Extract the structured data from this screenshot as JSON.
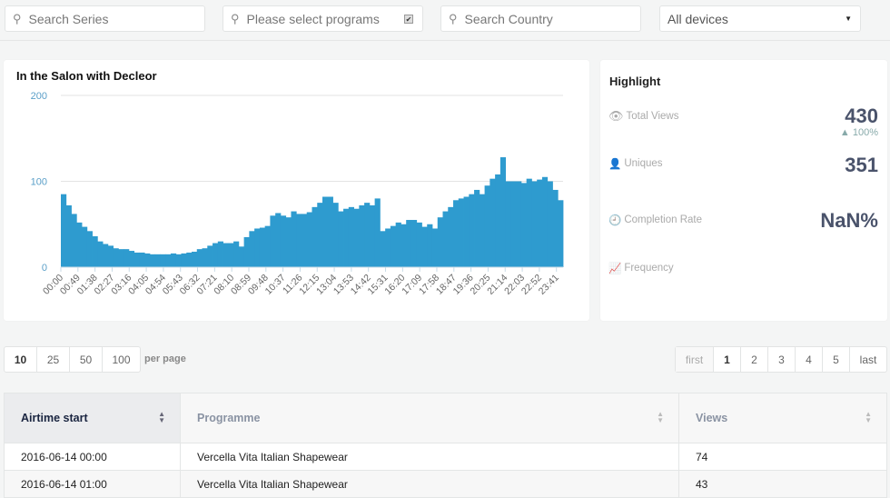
{
  "filters": {
    "series_placeholder": "Search Series",
    "programs_placeholder": "Please select programs",
    "country_placeholder": "Search Country",
    "devices_value": "All devices"
  },
  "chart": {
    "title": "In the Salon with Decleor"
  },
  "chart_data": {
    "type": "bar",
    "title": "In the Salon with Decleor",
    "xlabel": "",
    "ylabel": "",
    "ylim": [
      0,
      200
    ],
    "yticks": [
      "0",
      "100",
      "200"
    ],
    "grid": true,
    "color": "#2e9bcf",
    "xticks": [
      "00:00",
      "00:49",
      "01:38",
      "02:27",
      "03:16",
      "04:05",
      "04:54",
      "05:43",
      "06:32",
      "07:21",
      "08:10",
      "08:59",
      "09:48",
      "10:37",
      "11:26",
      "12:15",
      "13:04",
      "13:53",
      "14:42",
      "15:31",
      "16:20",
      "17:09",
      "17:58",
      "18:47",
      "19:36",
      "20:25",
      "21:14",
      "22:03",
      "22:52",
      "23:41"
    ],
    "x": [
      "00:00",
      "00:15",
      "00:30",
      "00:45",
      "01:00",
      "01:15",
      "01:30",
      "01:45",
      "02:00",
      "02:15",
      "02:30",
      "02:45",
      "03:00",
      "03:15",
      "03:30",
      "03:45",
      "04:00",
      "04:15",
      "04:30",
      "04:45",
      "05:00",
      "05:15",
      "05:30",
      "05:45",
      "06:00",
      "06:15",
      "06:30",
      "06:45",
      "07:00",
      "07:15",
      "07:30",
      "07:45",
      "08:00",
      "08:15",
      "08:30",
      "08:45",
      "09:00",
      "09:15",
      "09:30",
      "09:45",
      "10:00",
      "10:15",
      "10:30",
      "10:45",
      "11:00",
      "11:15",
      "11:30",
      "11:45",
      "12:00",
      "12:15",
      "12:30",
      "12:45",
      "13:00",
      "13:15",
      "13:30",
      "13:45",
      "14:00",
      "14:15",
      "14:30",
      "14:45",
      "15:00",
      "15:15",
      "15:30",
      "15:45",
      "16:00",
      "16:15",
      "16:30",
      "16:45",
      "17:00",
      "17:15",
      "17:30",
      "17:45",
      "18:00",
      "18:15",
      "18:30",
      "18:45",
      "19:00",
      "19:15",
      "19:30",
      "19:45",
      "20:00",
      "20:15",
      "20:30",
      "20:45",
      "21:00",
      "21:15",
      "21:30",
      "21:45",
      "22:00",
      "22:15",
      "22:30",
      "22:45",
      "23:00",
      "23:15",
      "23:30",
      "23:45"
    ],
    "values": [
      85,
      72,
      62,
      52,
      47,
      42,
      36,
      30,
      27,
      25,
      22,
      21,
      21,
      19,
      17,
      17,
      16,
      15,
      15,
      15,
      15,
      16,
      15,
      16,
      17,
      18,
      21,
      22,
      25,
      28,
      30,
      28,
      28,
      30,
      24,
      35,
      42,
      45,
      46,
      48,
      60,
      63,
      60,
      58,
      65,
      62,
      62,
      64,
      70,
      75,
      82,
      82,
      75,
      65,
      68,
      70,
      68,
      72,
      75,
      72,
      80,
      42,
      45,
      48,
      52,
      50,
      55,
      55,
      52,
      47,
      50,
      45,
      58,
      65,
      70,
      78,
      80,
      82,
      85,
      90,
      85,
      95,
      103,
      108,
      128,
      100,
      100,
      100,
      98,
      103,
      100,
      102,
      105,
      100,
      90,
      78
    ]
  },
  "highlight": {
    "title": "Highlight",
    "total_views_label": "Total Views",
    "total_views": "430",
    "total_views_change": "▲ 100%",
    "uniques_label": "Uniques",
    "uniques": "351",
    "completion_label": "Completion Rate",
    "completion": "NaN%",
    "frequency_label": "Frequency"
  },
  "per_page": {
    "options": [
      "10",
      "25",
      "50",
      "100"
    ],
    "selected": "10",
    "label": "per page"
  },
  "pagination": {
    "first": "first",
    "pages": [
      "1",
      "2",
      "3",
      "4",
      "5"
    ],
    "current": "1",
    "last": "last"
  },
  "table": {
    "headers": [
      "Airtime start",
      "Programme",
      "Views"
    ],
    "rows": [
      [
        "2016-06-14 00:00",
        "Vercella Vita Italian Shapewear",
        "74"
      ],
      [
        "2016-06-14 01:00",
        "Vercella Vita Italian Shapewear",
        "43"
      ]
    ]
  }
}
